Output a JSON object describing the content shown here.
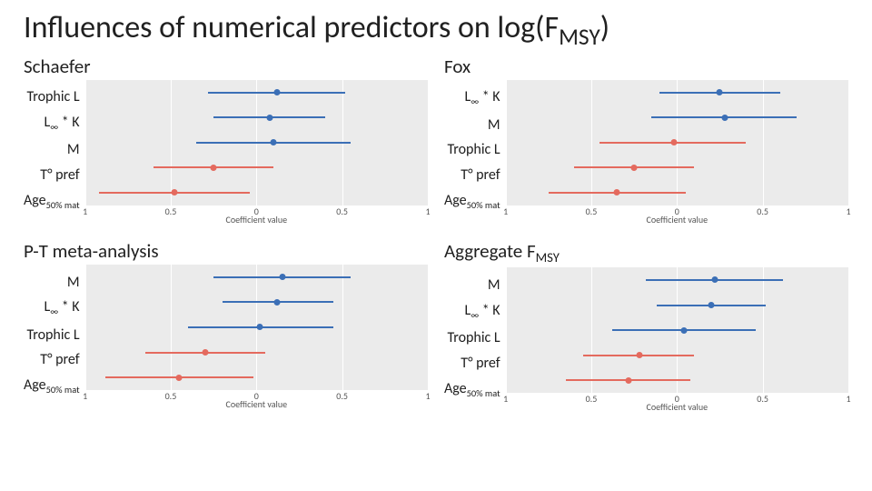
{
  "title_pre": "Influences of numerical predictors on log(F",
  "title_sub": "MSY",
  "title_post": ")",
  "common": {
    "xlabel": "Coefficient value",
    "xlim": [
      -1,
      1
    ],
    "xticks": [
      -1,
      -0.5,
      0,
      0.5,
      1
    ],
    "xtick_labels": [
      "1",
      "0.5",
      "0",
      "0.5",
      "1"
    ],
    "bg": "#ebebeb",
    "grid_color": "#ffffff",
    "color_pos": "#3b6fb6",
    "color_neg": "#e46a5e",
    "point_size": 7,
    "line_width": 2,
    "ylabel_fontsize": 16,
    "tick_fontsize": 10
  },
  "panels": [
    {
      "title_html": "Schaefer",
      "ylabels": [
        {
          "html": "Trophic L"
        },
        {
          "html": "L<span class=\"subsc\">∞</span> * K"
        },
        {
          "html": "M"
        },
        {
          "html": "T° pref"
        },
        {
          "html": "Age<span class=\"subsc\">50% mat</span>"
        }
      ],
      "rows": [
        {
          "est": 0.12,
          "lo": -0.28,
          "hi": 0.52,
          "sign": "pos"
        },
        {
          "est": 0.08,
          "lo": -0.25,
          "hi": 0.4,
          "sign": "pos"
        },
        {
          "est": 0.1,
          "lo": -0.35,
          "hi": 0.55,
          "sign": "pos"
        },
        {
          "est": -0.25,
          "lo": -0.6,
          "hi": 0.1,
          "sign": "neg"
        },
        {
          "est": -0.48,
          "lo": -0.92,
          "hi": -0.04,
          "sign": "neg"
        }
      ]
    },
    {
      "title_html": "Fox",
      "ylabels": [
        {
          "html": "L<span class=\"subsc\">∞</span> * K"
        },
        {
          "html": "M"
        },
        {
          "html": "Trophic L"
        },
        {
          "html": "T° pref"
        },
        {
          "html": "Age<span class=\"subsc\">50% mat</span>"
        }
      ],
      "rows": [
        {
          "est": 0.25,
          "lo": -0.1,
          "hi": 0.6,
          "sign": "pos"
        },
        {
          "est": 0.28,
          "lo": -0.15,
          "hi": 0.7,
          "sign": "pos"
        },
        {
          "est": -0.02,
          "lo": -0.45,
          "hi": 0.4,
          "sign": "neg"
        },
        {
          "est": -0.25,
          "lo": -0.6,
          "hi": 0.1,
          "sign": "neg"
        },
        {
          "est": -0.35,
          "lo": -0.75,
          "hi": 0.05,
          "sign": "neg"
        }
      ]
    },
    {
      "title_html": "P-T meta-analysis",
      "ylabels": [
        {
          "html": "M"
        },
        {
          "html": "L<span class=\"subsc\">∞</span> * K"
        },
        {
          "html": "Trophic L"
        },
        {
          "html": "T° pref"
        },
        {
          "html": "Age<span class=\"subsc\">50% mat</span>"
        }
      ],
      "rows": [
        {
          "est": 0.15,
          "lo": -0.25,
          "hi": 0.55,
          "sign": "pos"
        },
        {
          "est": 0.12,
          "lo": -0.2,
          "hi": 0.45,
          "sign": "pos"
        },
        {
          "est": 0.02,
          "lo": -0.4,
          "hi": 0.45,
          "sign": "pos"
        },
        {
          "est": -0.3,
          "lo": -0.65,
          "hi": 0.05,
          "sign": "neg"
        },
        {
          "est": -0.45,
          "lo": -0.88,
          "hi": -0.02,
          "sign": "neg"
        }
      ]
    },
    {
      "title_html": "Aggregate F<span class=\"sub\">MSY</span>",
      "ylabels": [
        {
          "html": "M"
        },
        {
          "html": "L<span class=\"subsc\">∞</span> * K"
        },
        {
          "html": "Trophic L"
        },
        {
          "html": "T° pref"
        },
        {
          "html": "Age<span class=\"subsc\">50% mat</span>"
        }
      ],
      "rows": [
        {
          "est": 0.22,
          "lo": -0.18,
          "hi": 0.62,
          "sign": "pos"
        },
        {
          "est": 0.2,
          "lo": -0.12,
          "hi": 0.52,
          "sign": "pos"
        },
        {
          "est": 0.04,
          "lo": -0.38,
          "hi": 0.46,
          "sign": "pos"
        },
        {
          "est": -0.22,
          "lo": -0.55,
          "hi": 0.1,
          "sign": "neg"
        },
        {
          "est": -0.28,
          "lo": -0.65,
          "hi": 0.08,
          "sign": "neg"
        }
      ]
    }
  ]
}
